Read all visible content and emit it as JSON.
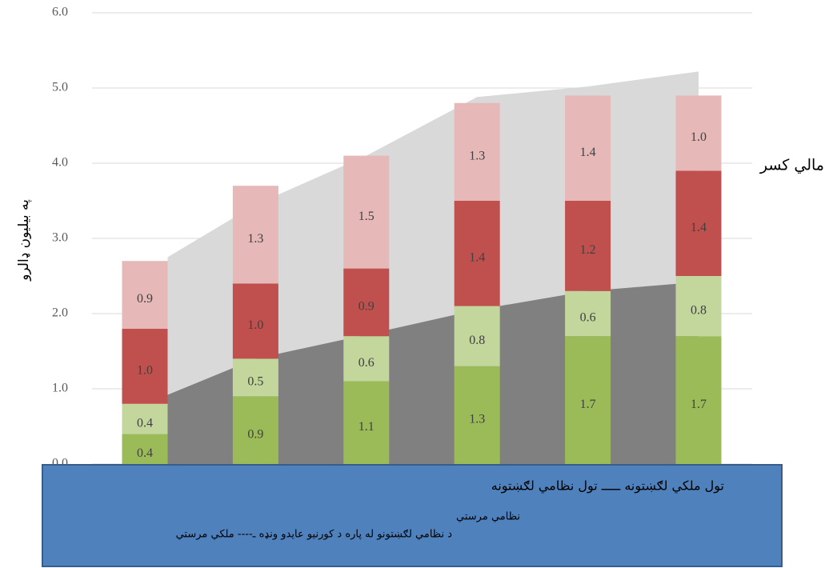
{
  "chart_data": {
    "type": "bar",
    "stacked": true,
    "y_label": "په بیلیون ډالرو",
    "categories": [
      null,
      null,
      null,
      null,
      null,
      null
    ],
    "ylim": [
      0,
      6
    ],
    "yticks": [
      {
        "value": 0,
        "label": "0.0"
      },
      {
        "value": 1,
        "label": "1.0"
      },
      {
        "value": 2,
        "label": "2.0"
      },
      {
        "value": 3,
        "label": "3.0"
      },
      {
        "value": 4,
        "label": "4.0"
      },
      {
        "value": 5,
        "label": "5.0"
      },
      {
        "value": 6,
        "label": "6.0"
      }
    ],
    "grid": true,
    "areas": [
      {
        "color": "#d9d9d9",
        "values": [
          2.75,
          3.45,
          4.1,
          4.88,
          5.02,
          5.22
        ]
      },
      {
        "color": "#808080",
        "values": [
          0.92,
          1.4,
          1.72,
          2.05,
          2.3,
          2.42
        ]
      }
    ],
    "series": [
      {
        "color": "#9bbb59",
        "values": [
          0.4,
          0.9,
          1.1,
          1.3,
          1.7,
          1.7
        ],
        "value_labels": [
          "0.4",
          "0.9",
          "1.1",
          "1.3",
          "1.7",
          "1.7"
        ]
      },
      {
        "color": "#c3d69b",
        "values": [
          0.4,
          0.5,
          0.6,
          0.8,
          0.6,
          0.8
        ],
        "value_labels": [
          "0.4",
          "0.5",
          "0.6",
          "0.8",
          "0.6",
          "0.8"
        ]
      },
      {
        "color": "#c0504d",
        "values": [
          1.0,
          1.0,
          0.9,
          1.4,
          1.2,
          1.4
        ],
        "value_labels": [
          "1.0",
          "1.0",
          "0.9",
          "1.4",
          "1.2",
          "1.4"
        ]
      },
      {
        "color": "#e6b9b8",
        "values": [
          0.9,
          1.3,
          1.5,
          1.3,
          1.4,
          1.0
        ],
        "value_labels": [
          "0.9",
          "1.3",
          "1.5",
          "1.3",
          "1.4",
          "1.0"
        ]
      }
    ],
    "annotation": {
      "text": "مالي کسر",
      "color": "#e00000",
      "from": 3.88,
      "to": 4.1
    },
    "legend_box": {
      "color": "#4f81bd",
      "lines": [
        "تول ملکي لګښتونه ـــــ   تول نظامي لګښتونه",
        "نظامي مرستي",
        "د نظامي لګښتونو له پاره د کورنيو عايدو ونډه ـ---- ملکي مرستي"
      ]
    }
  }
}
